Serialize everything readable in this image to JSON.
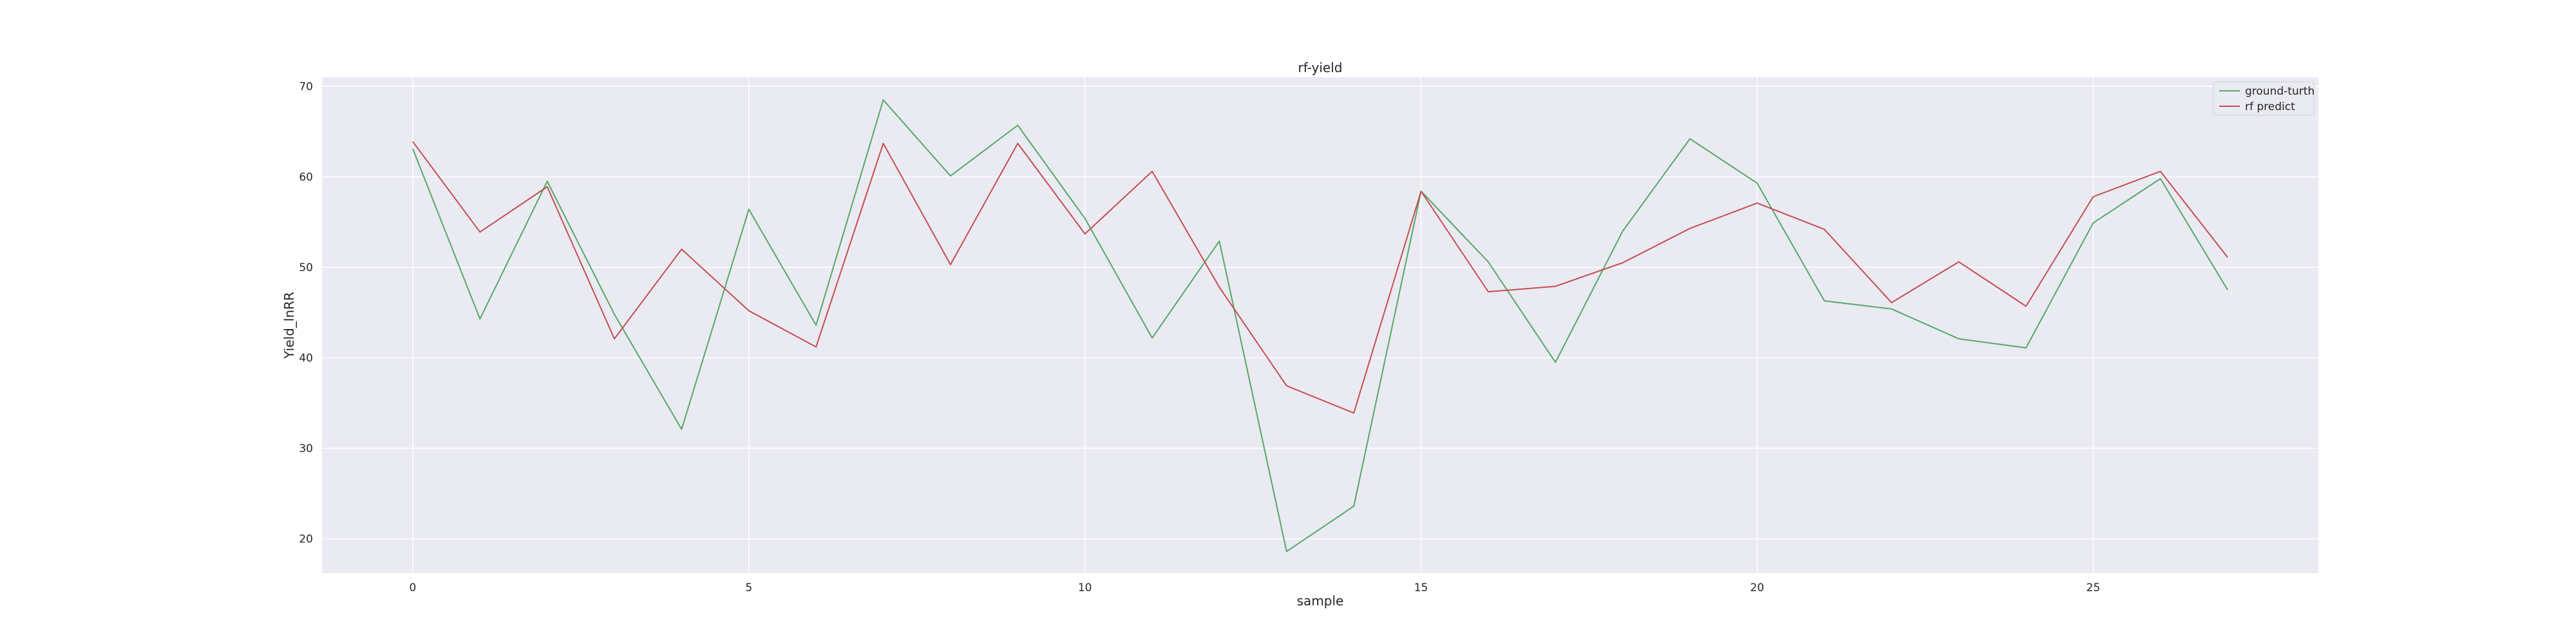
{
  "chart_data": {
    "type": "line",
    "title": "rf-yield",
    "xlabel": "sample",
    "ylabel": "Yield_lnRR",
    "xlim": [
      -1.35,
      28.35
    ],
    "ylim": [
      16.2,
      71
    ],
    "xticks": [
      0,
      5,
      10,
      15,
      20,
      25
    ],
    "yticks": [
      20,
      30,
      40,
      50,
      60,
      70
    ],
    "grid": true,
    "legend_position": "top-right",
    "x": [
      0,
      1,
      2,
      3,
      4,
      5,
      6,
      7,
      8,
      9,
      10,
      11,
      12,
      13,
      14,
      15,
      16,
      17,
      18,
      19,
      20,
      21,
      22,
      23,
      24,
      25,
      26,
      27
    ],
    "series": [
      {
        "name": "ground-turth",
        "color": "#55a868",
        "values": [
          63.1,
          44.3,
          59.5,
          44.8,
          32.1,
          56.4,
          43.6,
          68.5,
          60.1,
          65.7,
          55.4,
          42.2,
          52.9,
          18.6,
          23.6,
          58.4,
          50.6,
          39.5,
          54.0,
          64.2,
          59.3,
          46.3,
          45.4,
          42.1,
          41.1,
          54.9,
          59.8,
          47.5
        ]
      },
      {
        "name": "rf predict",
        "color": "#c44e52",
        "values": [
          63.9,
          53.9,
          58.9,
          42.1,
          52.0,
          45.2,
          41.2,
          63.7,
          50.3,
          63.7,
          53.7,
          60.6,
          47.8,
          36.9,
          33.9,
          58.4,
          47.3,
          47.9,
          50.5,
          54.3,
          57.1,
          54.2,
          46.1,
          50.6,
          45.7,
          57.8,
          60.6,
          51.1
        ]
      }
    ]
  }
}
